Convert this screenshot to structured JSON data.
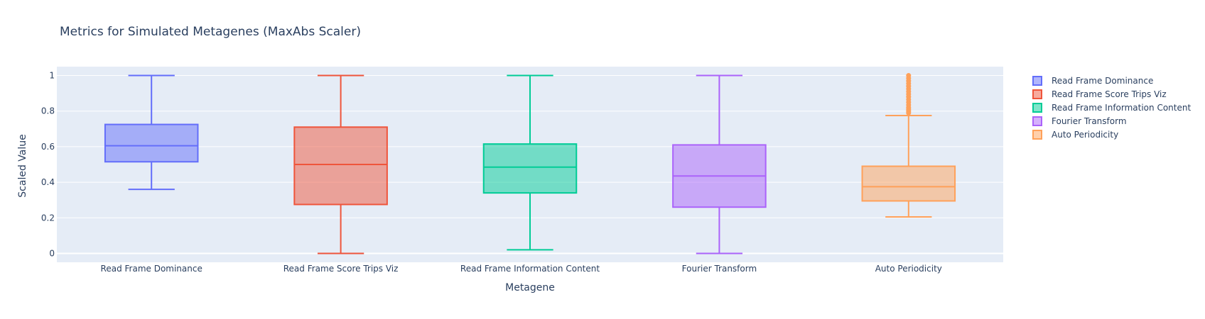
{
  "chart_data": {
    "type": "box",
    "title": "Metrics for Simulated Metagenes (MaxAbs Scaler)",
    "xlabel": "Metagene",
    "ylabel": "Scaled Value",
    "ylim": [
      -0.05,
      1.05
    ],
    "yticks": [
      0,
      0.2,
      0.4,
      0.6,
      0.8,
      1
    ],
    "ytick_labels": [
      "0",
      "0.2",
      "0.4",
      "0.6",
      "0.8",
      "1"
    ],
    "grid": true,
    "legend_position": "right",
    "categories": [
      "Read Frame Dominance",
      "Read Frame Score Trips Viz",
      "Read Frame Information Content",
      "Fourier Transform",
      "Auto Periodicity"
    ],
    "series": [
      {
        "name": "Read Frame Dominance",
        "color": "#636efa",
        "whisker_low": 0.36,
        "q1": 0.515,
        "median": 0.605,
        "q3": 0.725,
        "whisker_high": 1.0,
        "outliers": []
      },
      {
        "name": "Read Frame Score Trips Viz",
        "color": "#ef553b",
        "whisker_low": 0.0,
        "q1": 0.275,
        "median": 0.5,
        "q3": 0.71,
        "whisker_high": 1.0,
        "outliers": []
      },
      {
        "name": "Read Frame Information Content",
        "color": "#00cc96",
        "whisker_low": 0.02,
        "q1": 0.34,
        "median": 0.485,
        "q3": 0.615,
        "whisker_high": 1.0,
        "outliers": []
      },
      {
        "name": "Fourier Transform",
        "color": "#ab63fa",
        "whisker_low": 0.0,
        "q1": 0.26,
        "median": 0.435,
        "q3": 0.61,
        "whisker_high": 1.0,
        "outliers": []
      },
      {
        "name": "Auto Periodicity",
        "color": "#ffa15a",
        "whisker_low": 0.205,
        "q1": 0.295,
        "median": 0.375,
        "q3": 0.49,
        "whisker_high": 0.775,
        "outliers": [
          0.79,
          0.8,
          0.81,
          0.82,
          0.835,
          0.85,
          0.865,
          0.88,
          0.895,
          0.91,
          0.925,
          0.94,
          0.955,
          0.97,
          0.985,
          1.0
        ]
      }
    ]
  }
}
